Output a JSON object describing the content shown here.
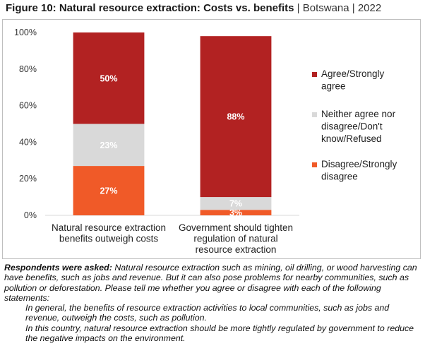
{
  "title": {
    "main": "Figure 10: Natural resource extraction: Costs vs. benefits",
    "country": "Botswana",
    "year": "2022",
    "separator": "|"
  },
  "chart_data": {
    "type": "bar",
    "stacked": true,
    "categories": [
      [
        "Natural resource extraction",
        "benefits outweigh costs"
      ],
      [
        "Government should tighten",
        "regulation of natural",
        "resource extraction"
      ]
    ],
    "series": [
      {
        "name": "Disagree/Strongly disagree",
        "color": "#f05a28",
        "values": [
          27,
          3
        ],
        "labels": [
          "27%",
          "3%"
        ]
      },
      {
        "name": "Neither agree nor disagree/Don't know/Refused",
        "color": "#d9d9d9",
        "values": [
          23,
          7
        ],
        "labels": [
          "23%",
          "7%"
        ]
      },
      {
        "name": "Agree/Strongly agree",
        "color": "#b22222",
        "values": [
          50,
          88
        ],
        "labels": [
          "50%",
          "88%"
        ]
      }
    ],
    "legend": [
      {
        "lines": [
          "Agree/Strongly",
          "agree"
        ],
        "color": "#b22222"
      },
      {
        "lines": [
          "Neither agree nor",
          "disagree/Don't",
          "know/Refused"
        ],
        "color": "#d9d9d9"
      },
      {
        "lines": [
          "Disagree/Strongly",
          "disagree"
        ],
        "color": "#f05a28"
      }
    ],
    "ylim": [
      0,
      100
    ],
    "yticks": [
      0,
      20,
      40,
      60,
      80,
      100
    ],
    "ytick_labels": [
      "0%",
      "20%",
      "40%",
      "60%",
      "80%",
      "100%"
    ],
    "legend_position": "right",
    "grid": false
  },
  "notes": {
    "lead": "Respondents were asked:",
    "question": " Natural resource extraction such as mining, oil drilling, or wood harvesting can have benefits, such as jobs and revenue. But it can also pose problems for nearby communities, such as pollution or deforestation. Please tell me whether you agree or disagree with each of the following statements:",
    "statements": [
      "In general, the benefits of resource extraction activities to local communities, such as jobs and revenue, outweigh the costs, such as pollution.",
      "In this country, natural resource extraction should be more tightly regulated by government to reduce the negative impacts on the environment."
    ]
  }
}
